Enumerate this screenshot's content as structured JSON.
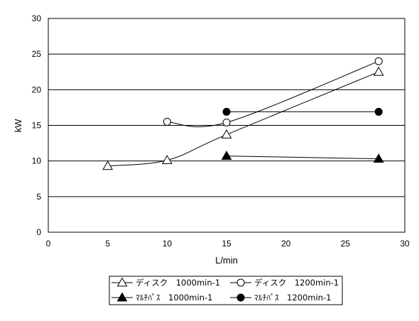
{
  "chart_data": {
    "type": "line",
    "xlabel": "L/min",
    "ylabel": "kW",
    "xlim": [
      0,
      30
    ],
    "ylim": [
      0,
      30
    ],
    "xticks": [
      0,
      5,
      10,
      15,
      20,
      25,
      30
    ],
    "yticks": [
      0,
      5,
      10,
      15,
      20,
      25,
      30
    ],
    "grid": "horizontal",
    "legend_position": "bottom",
    "series": [
      {
        "name": "ディスク　1000min-1",
        "marker": "triangle-open",
        "smooth": true,
        "x": [
          5,
          10,
          15,
          27.8
        ],
        "y": [
          9.3,
          10.1,
          13.7,
          22.5
        ]
      },
      {
        "name": "ディスク　1200min-1",
        "marker": "circle-open",
        "smooth": true,
        "x": [
          10,
          15,
          27.8
        ],
        "y": [
          15.5,
          15.4,
          24.0
        ]
      },
      {
        "name": "ﾏﾙﾁﾊﾟｽ　1000min-1",
        "marker": "triangle-filled",
        "smooth": false,
        "x": [
          15,
          27.8
        ],
        "y": [
          10.7,
          10.3
        ]
      },
      {
        "name": "ﾏﾙﾁﾊﾟｽ　1200min-1",
        "marker": "circle-filled",
        "smooth": false,
        "x": [
          15,
          27.8
        ],
        "y": [
          16.9,
          16.9
        ]
      }
    ]
  }
}
